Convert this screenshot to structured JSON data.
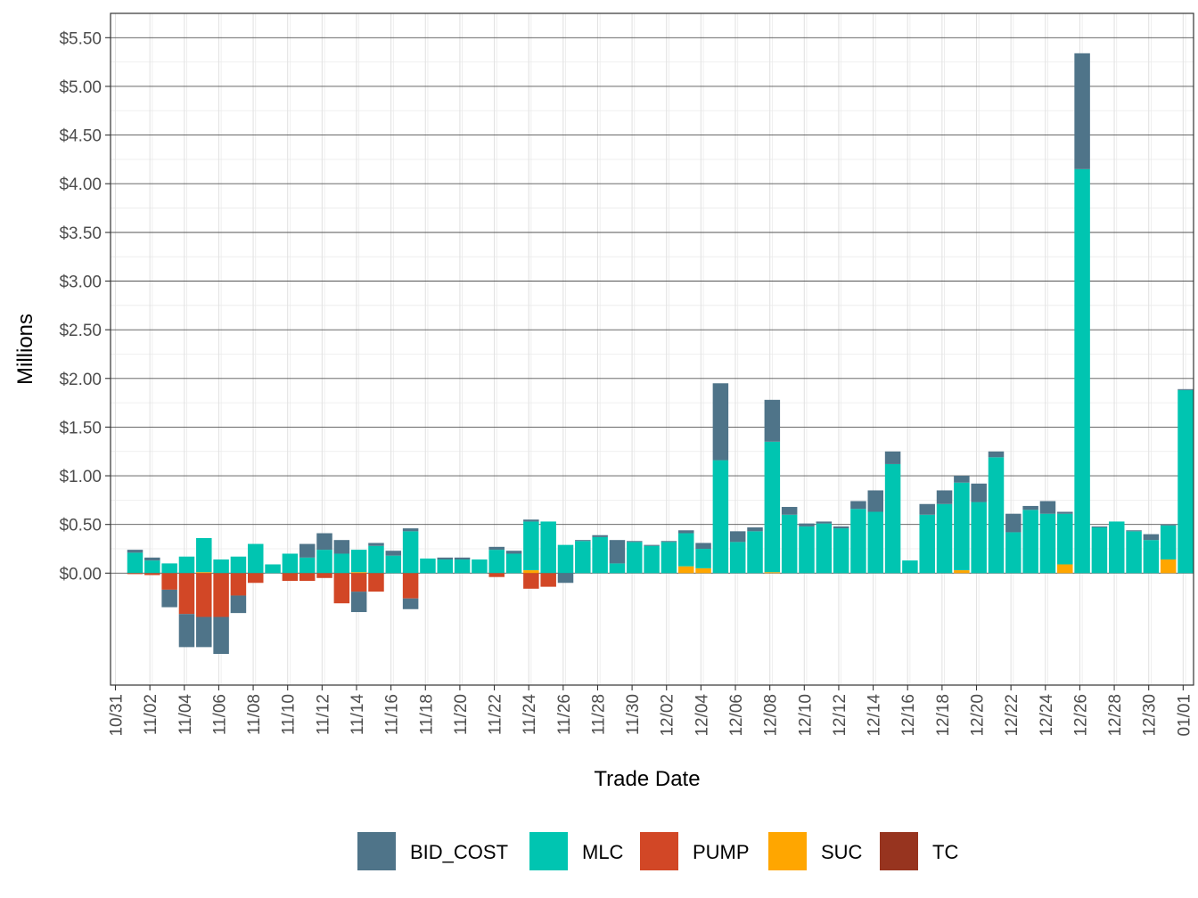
{
  "chart_data": {
    "type": "bar",
    "stacked": true,
    "title": "",
    "xlabel": "Trade Date",
    "ylabel": "Millions",
    "x_axis_type": "date",
    "x_tick_labels": [
      "10/31",
      "11/02",
      "11/04",
      "11/06",
      "11/08",
      "11/10",
      "11/12",
      "11/14",
      "11/16",
      "11/18",
      "11/20",
      "11/22",
      "11/24",
      "11/26",
      "11/28",
      "11/30",
      "12/02",
      "12/04",
      "12/06",
      "12/08",
      "12/10",
      "12/12",
      "12/14",
      "12/16",
      "12/18",
      "12/20",
      "12/22",
      "12/24",
      "12/26",
      "12/28",
      "12/30",
      "01/01"
    ],
    "y_tick_labels": [
      "$0.00",
      "$0.50",
      "$1.00",
      "$1.50",
      "$2.00",
      "$2.50",
      "$3.00",
      "$3.50",
      "$4.00",
      "$4.50",
      "$5.00",
      "$5.50"
    ],
    "y_ticks": [
      0,
      0.5,
      1,
      1.5,
      2,
      2.5,
      3,
      3.5,
      4,
      4.5,
      5,
      5.5
    ],
    "ylim": [
      -1.15,
      5.75
    ],
    "grid": true,
    "legend_position": "bottom",
    "categories": [
      "10/31",
      "11/01",
      "11/02",
      "11/03",
      "11/04",
      "11/05",
      "11/06",
      "11/07",
      "11/08",
      "11/09",
      "11/10",
      "11/11",
      "11/12",
      "11/13",
      "11/14",
      "11/15",
      "11/16",
      "11/17",
      "11/18",
      "11/19",
      "11/20",
      "11/21",
      "11/22",
      "11/23",
      "11/24",
      "11/25",
      "11/26",
      "11/27",
      "11/28",
      "11/29",
      "11/30",
      "12/01",
      "12/02",
      "12/03",
      "12/04",
      "12/05",
      "12/06",
      "12/07",
      "12/08",
      "12/09",
      "12/10",
      "12/11",
      "12/12",
      "12/13",
      "12/14",
      "12/15",
      "12/16",
      "12/17",
      "12/18",
      "12/19",
      "12/20",
      "12/21",
      "12/22",
      "12/23",
      "12/24",
      "12/25",
      "12/26",
      "12/27",
      "12/28",
      "12/29",
      "12/30",
      "12/31"
    ],
    "series": [
      {
        "name": "BID_COST",
        "color": "#4f7489",
        "pos": [
          0.03,
          0.03,
          0,
          0,
          0,
          0,
          0,
          0,
          0,
          0,
          0.14,
          0.17,
          0.14,
          0,
          0.03,
          0.05,
          0.03,
          0,
          0.02,
          0.02,
          0,
          0.03,
          0.03,
          0.02,
          0,
          0,
          0.01,
          0.02,
          0.24,
          0.01,
          0.01,
          0.01,
          0.03,
          0.06,
          0.79,
          0.11,
          0.04,
          0.43,
          0.08,
          0.03,
          0.02,
          0.02,
          0.08,
          0.22,
          0.13,
          0,
          0.11,
          0.14,
          0.07,
          0.19,
          0.06,
          0.19,
          0.04,
          0.13,
          0.02,
          1.19,
          0.01,
          0,
          0.01,
          0.06,
          0.01,
          0.01
        ],
        "neg": [
          0,
          0,
          -0.18,
          -0.34,
          -0.31,
          -0.38,
          -0.18,
          0,
          0,
          0,
          0,
          0,
          0,
          -0.21,
          0,
          0,
          -0.11,
          0,
          0,
          0,
          0,
          0,
          0,
          0,
          0,
          -0.1,
          0,
          0,
          0,
          0,
          0,
          0,
          0,
          0,
          0,
          0,
          0,
          0,
          0,
          0,
          0,
          0,
          0,
          0,
          0,
          0,
          0,
          0,
          0,
          0,
          0,
          0,
          0,
          0,
          0,
          0,
          0,
          0,
          0,
          0,
          0,
          0
        ]
      },
      {
        "name": "MLC",
        "color": "#00c5b1",
        "pos": [
          0.21,
          0.13,
          0.1,
          0.17,
          0.35,
          0.14,
          0.17,
          0.3,
          0.09,
          0.2,
          0.16,
          0.24,
          0.2,
          0.23,
          0.28,
          0.18,
          0.43,
          0.15,
          0.14,
          0.14,
          0.14,
          0.24,
          0.2,
          0.5,
          0.53,
          0.29,
          0.33,
          0.37,
          0.1,
          0.32,
          0.28,
          0.32,
          0.34,
          0.2,
          1.16,
          0.32,
          0.43,
          1.34,
          0.6,
          0.48,
          0.51,
          0.46,
          0.66,
          0.63,
          1.12,
          0.13,
          0.6,
          0.71,
          0.9,
          0.73,
          1.19,
          0.42,
          0.65,
          0.61,
          0.52,
          4.15,
          0.47,
          0.53,
          0.43,
          0.34,
          0.35,
          1.88
        ],
        "neg": [
          0,
          0,
          0,
          0,
          0,
          0,
          0,
          0,
          0,
          0,
          0,
          0,
          0,
          0,
          0,
          0,
          0,
          0,
          0,
          0,
          0,
          0,
          0,
          0,
          0,
          0,
          0,
          0,
          0,
          0,
          0,
          0,
          0,
          0,
          0,
          0,
          0,
          0,
          0,
          0,
          0,
          0,
          0,
          0,
          0,
          0,
          0,
          0,
          0,
          0,
          0,
          0,
          0,
          0,
          0,
          0,
          0,
          0,
          0,
          0,
          0,
          0
        ]
      },
      {
        "name": "PUMP",
        "color": "#d24726",
        "pos": [
          0,
          0,
          0,
          0,
          0,
          0,
          0,
          0,
          0,
          0,
          0,
          0,
          0,
          0,
          0,
          0,
          0,
          0,
          0,
          0,
          0,
          0,
          0,
          0,
          0,
          0,
          0,
          0,
          0,
          0,
          0,
          0,
          0,
          0,
          0,
          0,
          0,
          0,
          0,
          0,
          0,
          0,
          0,
          0,
          0,
          0,
          0,
          0,
          0,
          0,
          0,
          0,
          0,
          0,
          0,
          0,
          0,
          0,
          0,
          0,
          0,
          0
        ],
        "neg": [
          -0.01,
          -0.02,
          -0.17,
          -0.42,
          -0.45,
          -0.45,
          -0.23,
          -0.1,
          0,
          -0.08,
          -0.08,
          -0.05,
          -0.31,
          -0.19,
          -0.19,
          0,
          -0.26,
          0,
          0,
          0,
          0,
          -0.04,
          0,
          -0.16,
          -0.14,
          0,
          0,
          0,
          0,
          0,
          0,
          0,
          0,
          0,
          0,
          0,
          0,
          0,
          0,
          0,
          0,
          0,
          0,
          0,
          0,
          0,
          0,
          0,
          0,
          0,
          0,
          0,
          0,
          0,
          0,
          0,
          0,
          0,
          0,
          0,
          0,
          0
        ]
      },
      {
        "name": "SUC",
        "color": "#ffa600",
        "pos": [
          0,
          0,
          0,
          0,
          0.01,
          0,
          0,
          0,
          0,
          0,
          0,
          0,
          0,
          0.01,
          0,
          0,
          0,
          0,
          0,
          0,
          0,
          0,
          0,
          0.03,
          0,
          0,
          0,
          0,
          0,
          0,
          0,
          0,
          0.07,
          0.05,
          0,
          0,
          0,
          0.01,
          0,
          0,
          0,
          0,
          0,
          0,
          0,
          0,
          0,
          0,
          0.03,
          0,
          0,
          0,
          0,
          0,
          0.09,
          0,
          0,
          0,
          0,
          0,
          0.14,
          0
        ],
        "neg": [
          0,
          0,
          0,
          0,
          0,
          0,
          0,
          0,
          0,
          0,
          0,
          0,
          0,
          0,
          0,
          0,
          0,
          0,
          0,
          0,
          0,
          0,
          0,
          0,
          0,
          0,
          0,
          0,
          0,
          0,
          0,
          0,
          0,
          0,
          0,
          0,
          0,
          0,
          0,
          0,
          0,
          0,
          0,
          0,
          0,
          0,
          0,
          0,
          0,
          0,
          0,
          0,
          0,
          0,
          0,
          0,
          0,
          0,
          0,
          0,
          0,
          0
        ]
      },
      {
        "name": "TC",
        "color": "#97341f",
        "pos": [
          0,
          0,
          0,
          0,
          0,
          0,
          0,
          0,
          0,
          0,
          0,
          0,
          0,
          0,
          0,
          0,
          0,
          0,
          0,
          0,
          0,
          0,
          0,
          0,
          0,
          0,
          0,
          0,
          0,
          0,
          0,
          0,
          0,
          0,
          0,
          0,
          0,
          0,
          0,
          0,
          0,
          0,
          0,
          0,
          0,
          0,
          0,
          0,
          0,
          0,
          0,
          0,
          0,
          0,
          0,
          0,
          0,
          0,
          0,
          0,
          0,
          0
        ],
        "neg": [
          0,
          0,
          0,
          0,
          0,
          0,
          0,
          0,
          0,
          0,
          0,
          0,
          0,
          0,
          0,
          0,
          0,
          0,
          0,
          0,
          0,
          0,
          0,
          0,
          0,
          0,
          0,
          0,
          0,
          0,
          0,
          0,
          0,
          0,
          0,
          0,
          0,
          0,
          0,
          0,
          0,
          0,
          0,
          0,
          0,
          0,
          0,
          0,
          0,
          0,
          0,
          0,
          0,
          0,
          0,
          0,
          0,
          0,
          0,
          0,
          0,
          0
        ]
      }
    ]
  }
}
